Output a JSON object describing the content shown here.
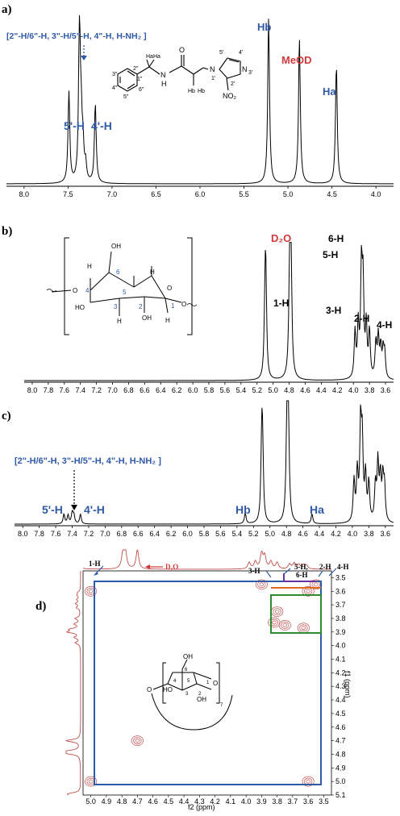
{
  "colors": {
    "blue": "#2f5aa8",
    "red": "#d03a3a",
    "black": "#000000",
    "box_blue": "#2f5aa8",
    "box_green": "#2e8b2e",
    "box_purple": "#6a2fa0",
    "box_orange": "#e06a20",
    "spectrum_red": "#c0504d"
  },
  "panel_a": {
    "label": "a)",
    "group_label": "[2\"-H/6\"-H, 3\"-H/5\"-H, 4\"-H, H-NH₂ ]",
    "peak_labels": [
      "5'-H",
      "4'-H",
      "Hb",
      "MeOD",
      "Ha"
    ],
    "structure_labels": [
      "Ha",
      "Ha",
      "2\"",
      "1\"",
      "3\"",
      "4\"",
      "5\"",
      "6\"",
      "N",
      "H",
      "O",
      "Hb",
      "Hb",
      "N",
      "1'",
      "5'",
      "4'",
      "N",
      "3'",
      "2'",
      "NO₂"
    ],
    "chart_data": {
      "type": "line",
      "title": "",
      "xlabel": "",
      "ylabel": "",
      "xlim": [
        8.2,
        3.8
      ],
      "x_ticks": [
        8.0,
        7.5,
        7.0,
        6.5,
        6.0,
        5.5,
        5.0,
        4.5,
        4.0
      ],
      "peaks": [
        {
          "x": 7.49,
          "y": 0.55
        },
        {
          "x": 7.37,
          "y": 0.97
        },
        {
          "x": 7.35,
          "y": 0.3
        },
        {
          "x": 7.33,
          "y": 0.2
        },
        {
          "x": 7.3,
          "y": 0.1
        },
        {
          "x": 7.19,
          "y": 0.48
        },
        {
          "x": 5.22,
          "y": 1.0
        },
        {
          "x": 4.87,
          "y": 0.88
        },
        {
          "x": 4.45,
          "y": 0.72
        }
      ]
    }
  },
  "panel_b": {
    "label": "b)",
    "peak_labels": [
      "D₂O",
      "6-H",
      "5-H",
      "1-H",
      "3-H",
      "2-H",
      "4-H"
    ],
    "structure_labels": [
      "H",
      "OH",
      "6",
      "4",
      "5",
      "H",
      "O",
      "O",
      "HO",
      "3",
      "2",
      "1",
      "H",
      "OH",
      "H",
      "O"
    ],
    "chart_data": {
      "type": "line",
      "title": "",
      "xlabel": "",
      "ylabel": "",
      "xlim": [
        8.1,
        3.5
      ],
      "x_ticks": [
        8.0,
        7.8,
        7.6,
        7.4,
        7.2,
        7.0,
        6.8,
        6.6,
        6.4,
        6.2,
        6.0,
        5.8,
        5.6,
        5.4,
        5.2,
        5.0,
        4.8,
        4.6,
        4.4,
        4.2,
        4.0,
        3.8,
        3.6
      ],
      "peaks": [
        {
          "x": 5.1,
          "y": 0.56
        },
        {
          "x": 5.09,
          "y": 0.58
        },
        {
          "x": 4.79,
          "y": 1.0
        },
        {
          "x": 4.78,
          "y": 0.97
        },
        {
          "x": 3.98,
          "y": 0.34
        },
        {
          "x": 3.94,
          "y": 0.38
        },
        {
          "x": 3.9,
          "y": 0.78
        },
        {
          "x": 3.88,
          "y": 0.65
        },
        {
          "x": 3.84,
          "y": 0.38
        },
        {
          "x": 3.8,
          "y": 0.34
        },
        {
          "x": 3.72,
          "y": 0.26
        },
        {
          "x": 3.69,
          "y": 0.3
        },
        {
          "x": 3.66,
          "y": 0.22
        },
        {
          "x": 3.63,
          "y": 0.2
        },
        {
          "x": 3.61,
          "y": 0.18
        }
      ]
    }
  },
  "panel_c": {
    "label": "c)",
    "group_label": "[2\"-H/6\"-H, 3\"-H/5\"-H, 4\"-H, H-NH₂ ]",
    "peak_labels": [
      "5'-H",
      "4'-H",
      "Hb",
      "Ha"
    ],
    "chart_data": {
      "type": "line",
      "title": "",
      "xlabel": "",
      "ylabel": "",
      "xlim": [
        8.1,
        3.5
      ],
      "x_ticks": [
        8.0,
        7.8,
        7.6,
        7.4,
        7.2,
        7.0,
        6.8,
        6.6,
        6.4,
        6.2,
        6.0,
        5.8,
        5.6,
        5.4,
        5.2,
        5.0,
        4.8,
        4.6,
        4.4,
        4.2,
        4.0,
        3.8,
        3.6
      ],
      "peaks": [
        {
          "x": 7.5,
          "y": 0.08
        },
        {
          "x": 7.45,
          "y": 0.07
        },
        {
          "x": 7.4,
          "y": 0.09
        },
        {
          "x": 7.38,
          "y": 0.07
        },
        {
          "x": 7.3,
          "y": 0.08
        },
        {
          "x": 5.3,
          "y": 0.09
        },
        {
          "x": 5.1,
          "y": 0.58
        },
        {
          "x": 5.09,
          "y": 0.55
        },
        {
          "x": 4.79,
          "y": 1.0
        },
        {
          "x": 4.78,
          "y": 0.96
        },
        {
          "x": 4.49,
          "y": 0.08
        },
        {
          "x": 3.98,
          "y": 0.34
        },
        {
          "x": 3.94,
          "y": 0.4
        },
        {
          "x": 3.9,
          "y": 0.77
        },
        {
          "x": 3.88,
          "y": 0.63
        },
        {
          "x": 3.84,
          "y": 0.38
        },
        {
          "x": 3.8,
          "y": 0.32
        },
        {
          "x": 3.72,
          "y": 0.3
        },
        {
          "x": 3.69,
          "y": 0.48
        },
        {
          "x": 3.66,
          "y": 0.36
        },
        {
          "x": 3.63,
          "y": 0.34
        },
        {
          "x": 3.61,
          "y": 0.28
        }
      ]
    }
  },
  "panel_d": {
    "label": "d)",
    "peak_labels": [
      "1-H",
      "D₂O",
      "3-H",
      "5-H,",
      "6-H",
      "2-H",
      "4-H"
    ],
    "structure_labels": [
      "OH",
      "6",
      "O",
      "HO",
      "4",
      "5",
      "3",
      "2",
      "1",
      "O",
      "OH",
      "7"
    ],
    "x_axis_label": "f2 (ppm)",
    "y_axis_label": "f1 (ppm)",
    "chart_data": {
      "type": "scatter",
      "title": "",
      "xlabel": "f2 (ppm)",
      "ylabel": "f1 (ppm)",
      "xlim": [
        5.05,
        3.45
      ],
      "ylim": [
        3.45,
        5.1
      ],
      "x_ticks": [
        5.0,
        4.9,
        4.8,
        4.7,
        4.6,
        4.5,
        4.4,
        4.3,
        4.2,
        4.1,
        4.0,
        3.9,
        3.8,
        3.7,
        3.6,
        3.5
      ],
      "y_ticks": [
        3.5,
        3.6,
        3.7,
        3.8,
        3.9,
        4.0,
        4.1,
        4.2,
        4.3,
        4.4,
        4.5,
        4.6,
        4.7,
        4.8,
        4.9,
        5.0,
        5.1
      ],
      "cross_peaks": [
        {
          "x": 5.0,
          "y": 5.0
        },
        {
          "x": 5.0,
          "y": 3.6
        },
        {
          "x": 3.6,
          "y": 5.0
        },
        {
          "x": 4.7,
          "y": 4.7
        },
        {
          "x": 3.9,
          "y": 3.55
        },
        {
          "x": 3.82,
          "y": 3.83
        },
        {
          "x": 3.75,
          "y": 3.85
        },
        {
          "x": 3.8,
          "y": 3.75
        },
        {
          "x": 3.6,
          "y": 3.6
        },
        {
          "x": 3.55,
          "y": 3.55
        },
        {
          "x": 3.63,
          "y": 3.87
        }
      ]
    }
  }
}
